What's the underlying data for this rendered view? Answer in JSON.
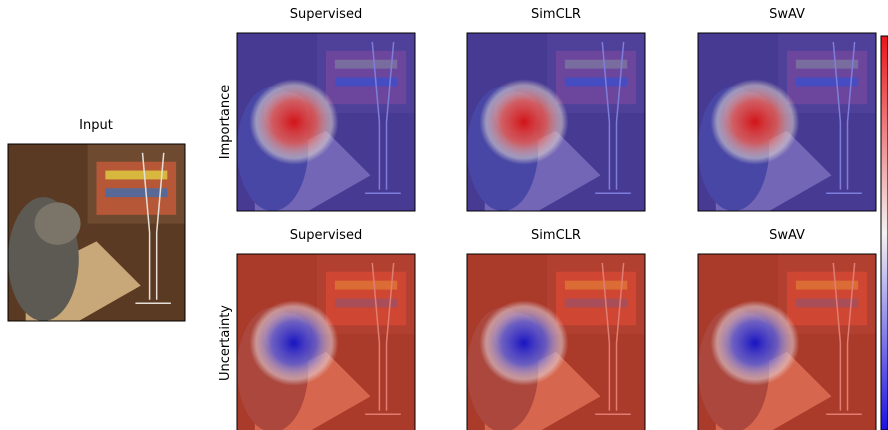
{
  "input": {
    "title": "Input"
  },
  "rows": [
    {
      "label": "Importance",
      "panels": [
        "Supervised",
        "SimCLR",
        "SwAV"
      ]
    },
    {
      "label": "Uncertainty",
      "panels": [
        "Supervised",
        "SimCLR",
        "SwAV"
      ]
    }
  ]
}
